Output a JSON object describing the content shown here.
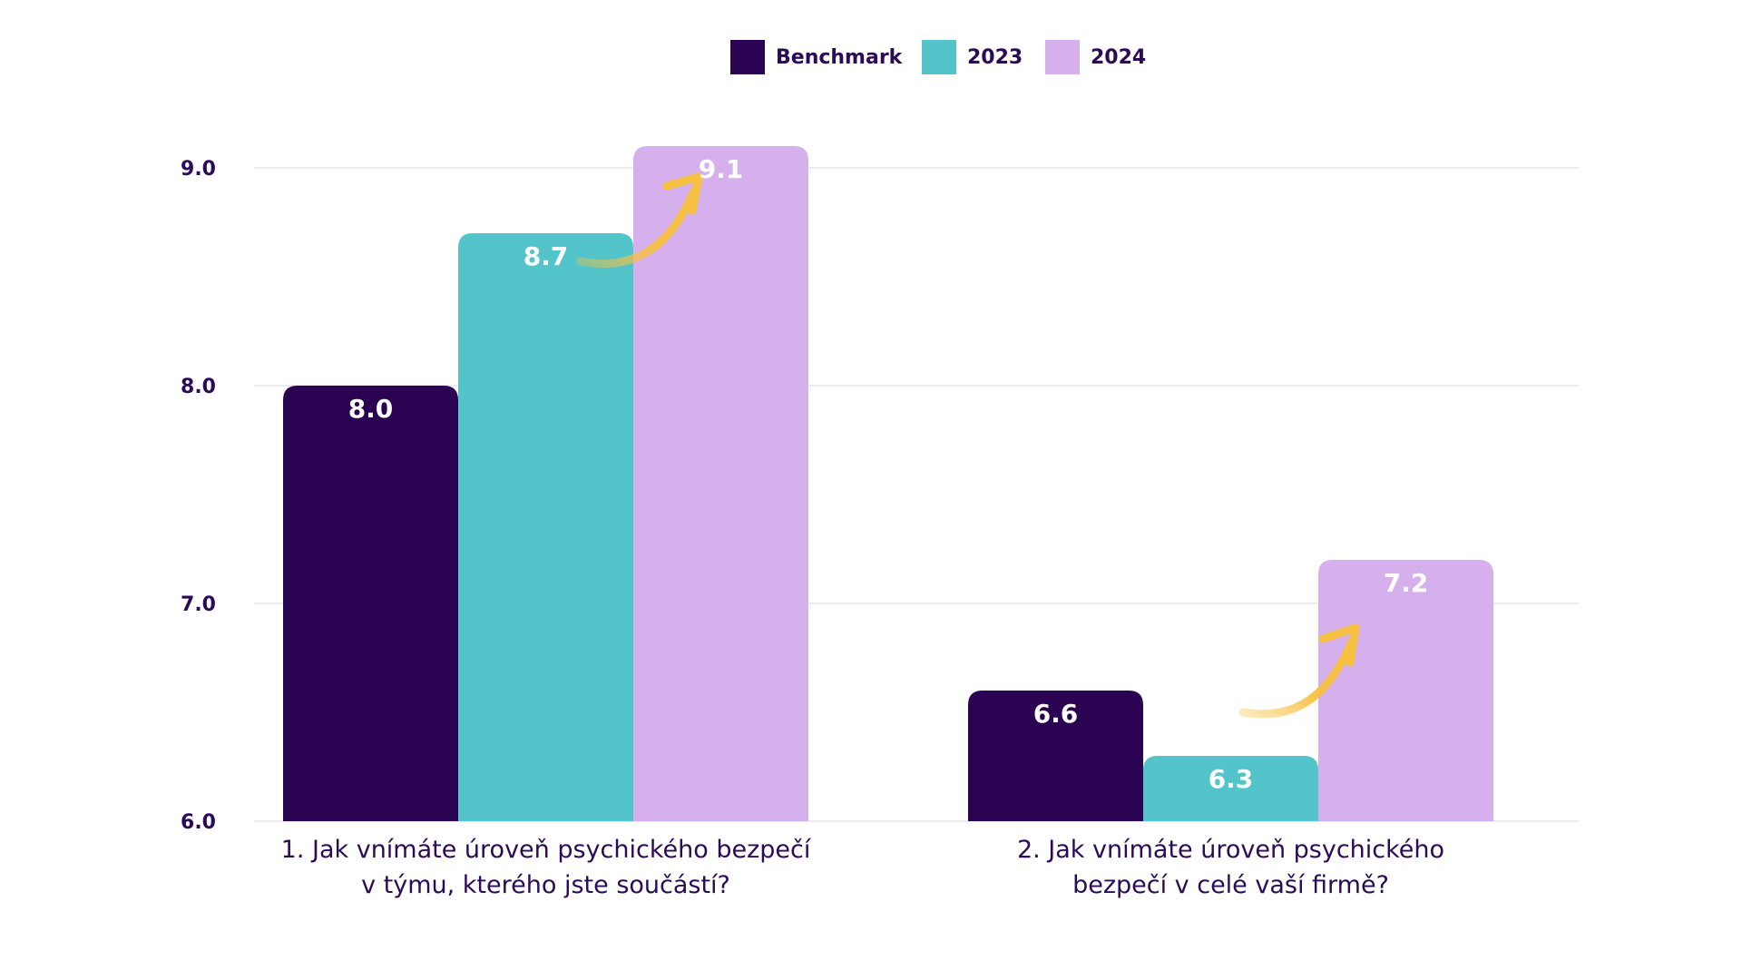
{
  "colors": {
    "text": "#2b0b57",
    "grid": "#e4e4e8",
    "arrow": "#f6c143"
  },
  "chart_data": {
    "type": "bar",
    "categories": [
      [
        "1. Jak vnímáte úroveň psychického bezpečí",
        "v týmu, kterého jste součástí?"
      ],
      [
        "2. Jak vnímáte úroveň psychického",
        "bezpečí v celé vaší firmě?"
      ]
    ],
    "series": [
      {
        "name": "Benchmark",
        "color": "#2a0352",
        "values": [
          8.0,
          6.6
        ],
        "labels": [
          "8.0",
          "6.6"
        ]
      },
      {
        "name": "2023",
        "color": "#52c4ca",
        "values": [
          8.7,
          6.3
        ],
        "labels": [
          "8.7",
          "6.3"
        ]
      },
      {
        "name": "2024",
        "color": "#d5b0ec",
        "values": [
          9.1,
          7.2
        ],
        "labels": [
          "9.1",
          "7.2"
        ]
      }
    ],
    "yticks": [
      "9.0",
      "8.0",
      "7.0",
      "6.0"
    ],
    "ylim": [
      6.0,
      9.0
    ],
    "legend": "top-center",
    "grid": true,
    "annotations": [
      "increase-arrow",
      "increase-arrow"
    ]
  }
}
